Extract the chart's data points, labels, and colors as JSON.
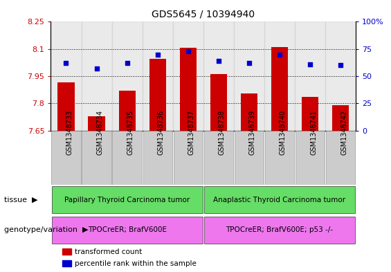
{
  "title": "GDS5645 / 10394940",
  "samples": [
    "GSM1348733",
    "GSM1348734",
    "GSM1348735",
    "GSM1348736",
    "GSM1348737",
    "GSM1348738",
    "GSM1348739",
    "GSM1348740",
    "GSM1348741",
    "GSM1348742"
  ],
  "transformed_count": [
    7.915,
    7.73,
    7.87,
    8.045,
    8.105,
    7.96,
    7.855,
    8.11,
    7.835,
    7.79
  ],
  "percentile_rank": [
    62,
    57,
    62,
    70,
    73,
    64,
    62,
    70,
    61,
    60
  ],
  "ylim_left": [
    7.65,
    8.25
  ],
  "ylim_right": [
    0,
    100
  ],
  "yticks_left": [
    7.65,
    7.8,
    7.95,
    8.1,
    8.25
  ],
  "yticks_right": [
    0,
    25,
    50,
    75,
    100
  ],
  "ytick_labels_left": [
    "7.65",
    "7.8",
    "7.95",
    "8.1",
    "8.25"
  ],
  "ytick_labels_right": [
    "0",
    "25",
    "50",
    "75",
    "100%"
  ],
  "bar_color": "#cc0000",
  "dot_color": "#0000cc",
  "bar_bottom": 7.65,
  "tissue_groups": [
    {
      "label": "Papillary Thyroid Carcinoma tumor",
      "start": 0,
      "end": 4,
      "color": "#66dd66"
    },
    {
      "label": "Anaplastic Thyroid Carcinoma tumor",
      "start": 5,
      "end": 9,
      "color": "#66dd66"
    }
  ],
  "genotype_groups": [
    {
      "label": "TPOCreER; BrafV600E",
      "start": 0,
      "end": 4,
      "color": "#ee77ee"
    },
    {
      "label": "TPOCreER; BrafV600E; p53 -/-",
      "start": 5,
      "end": 9,
      "color": "#ee77ee"
    }
  ],
  "tissue_label": "tissue",
  "genotype_label": "genotype/variation",
  "legend_items": [
    {
      "color": "#cc0000",
      "label": "transformed count"
    },
    {
      "color": "#0000cc",
      "label": "percentile rank within the sample"
    }
  ],
  "tick_color_left": "#cc0000",
  "tick_color_right": "#0000cc",
  "col_bg_color": "#cccccc",
  "grid_lines": [
    7.8,
    7.95,
    8.1
  ]
}
